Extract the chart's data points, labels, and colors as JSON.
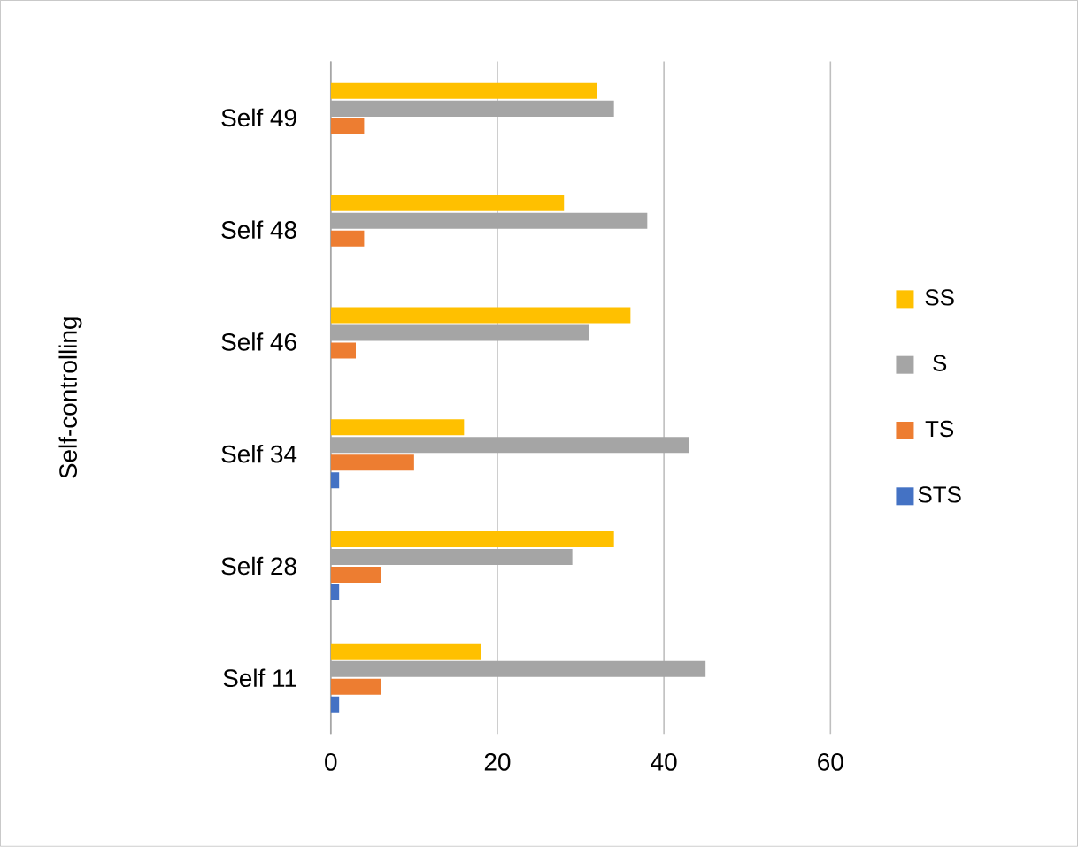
{
  "chart_data": {
    "type": "bar",
    "orientation": "horizontal",
    "annotations": [
      "Self-controlling"
    ],
    "categories": [
      "Self 49",
      "Self 48",
      "Self 46",
      "Self 34",
      "Self 28",
      "Self 11"
    ],
    "series": [
      {
        "name": "SS",
        "color": "#ffc000",
        "values": [
          32,
          28,
          36,
          16,
          34,
          18
        ]
      },
      {
        "name": "S",
        "color": "#a5a5a5",
        "values": [
          34,
          38,
          31,
          43,
          29,
          45
        ]
      },
      {
        "name": "TS",
        "color": "#ed7d31",
        "values": [
          4,
          4,
          3,
          10,
          6,
          6
        ]
      },
      {
        "name": "STS",
        "color": "#4472c4",
        "values": [
          0,
          0,
          0,
          1,
          1,
          1
        ]
      }
    ],
    "xlim": [
      0,
      60
    ],
    "xticks": [
      0,
      20,
      40,
      60
    ],
    "grid": "x",
    "legend": "right"
  }
}
